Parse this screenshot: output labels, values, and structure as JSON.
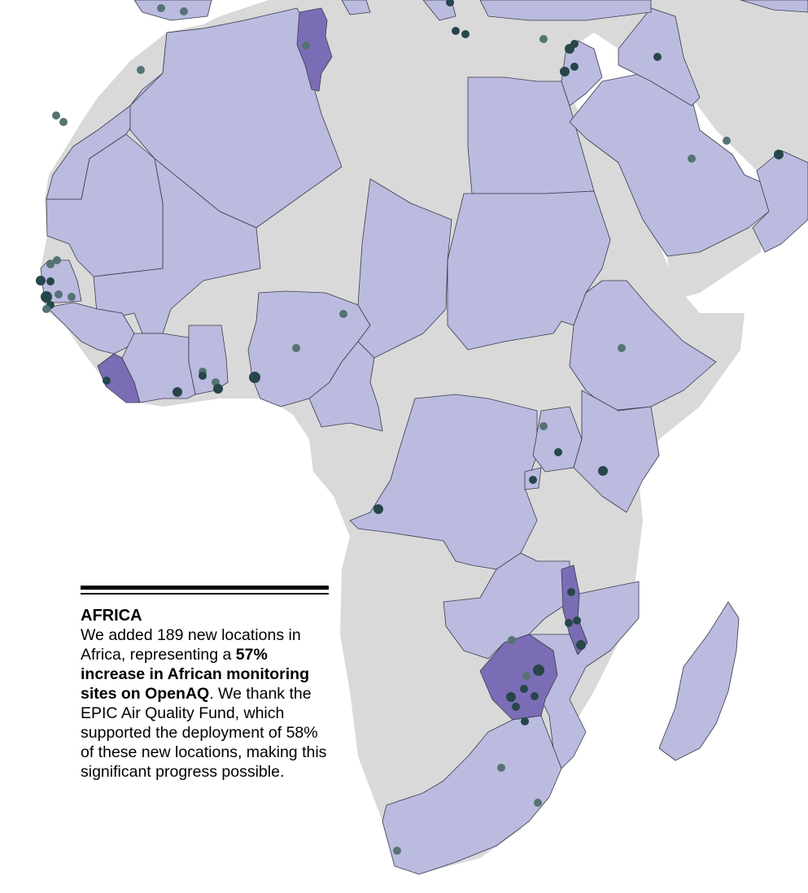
{
  "legend": {
    "heading": "AFRICA",
    "text_1": "We added 189 new locations in Africa, representing a ",
    "text_bold": "57% increase in African monitoring sites on OpenAQ",
    "text_2": ". We thank the EPIC Air Quality Fund, which supported the deployment of 58% of these new locations, making this significant progress possible."
  },
  "colors": {
    "no_data_land": "#d9d9d9",
    "country_with_monitors": "#babbdf",
    "highlighted_country": "#7a6db6",
    "monitor_dot": "#26464a",
    "border": "#3a3a4a"
  }
}
